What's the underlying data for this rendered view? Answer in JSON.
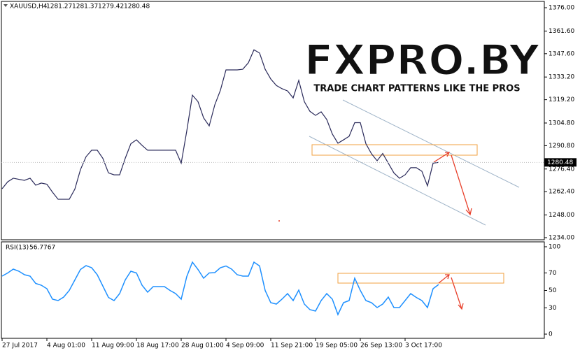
{
  "chart_data": [
    {
      "type": "line",
      "title": "XAUUSD,H4",
      "ohlc": [
        1281.27,
        1281.37,
        1279.42,
        1280.48
      ],
      "color": "#2a2a5a",
      "values": [
        1264.2,
        1268.5,
        1270.7,
        1270.0,
        1269.4,
        1270.7,
        1266.4,
        1267.7,
        1267.0,
        1262.1,
        1257.7,
        1257.7,
        1257.7,
        1264.0,
        1276.0,
        1284.0,
        1288.0,
        1288.0,
        1283.0,
        1274.0,
        1272.8,
        1272.8,
        1283.0,
        1292.0,
        1294.4,
        1291.0,
        1288.0,
        1288.0,
        1288.0,
        1288.0,
        1288.0,
        1288.0,
        1280.0,
        1300.0,
        1322.0,
        1318.0,
        1308.0,
        1303.0,
        1316.0,
        1325.0,
        1337.6,
        1337.6,
        1337.6,
        1338.0,
        1342.0,
        1350.0,
        1348.0,
        1338.0,
        1332.0,
        1328.0,
        1326.0,
        1324.6,
        1320.3,
        1331.1,
        1318.0,
        1312.0,
        1309.5,
        1311.7,
        1307.0,
        1298.0,
        1292.3,
        1294.4,
        1296.6,
        1305.0,
        1305.0,
        1292.0,
        1285.8,
        1281.5,
        1286.0,
        1280.0,
        1274.0,
        1270.7,
        1272.8,
        1277.2,
        1277.2,
        1275.0,
        1266.0,
        1280.0,
        1280.48
      ],
      "ylim": [
        1232.7,
        1379.9
      ],
      "yticks": [
        {
          "value": 1376,
          "label": "1376.00"
        },
        {
          "value": 1361.6,
          "label": "1361.60"
        },
        {
          "value": 1347.6,
          "label": "1347.60"
        },
        {
          "value": 1333.2,
          "label": "1333.20"
        },
        {
          "value": 1319.2,
          "label": "1319.20"
        },
        {
          "value": 1304.8,
          "label": "1304.80"
        },
        {
          "value": 1290.8,
          "label": "1290.80"
        },
        {
          "value": 1276.4,
          "label": "1276.40"
        },
        {
          "value": 1262.4,
          "label": "1262.40"
        },
        {
          "value": 1248,
          "label": "1248.00"
        },
        {
          "value": 1234,
          "label": "1234.00"
        }
      ],
      "watermark": "FXPRO.BY",
      "watermark_subtitle": "TRADE CHART PATTERNS LIKE THE PROS"
    },
    {
      "type": "line",
      "title": "RSI(13)",
      "color": "#1e90ff",
      "categories": [
        "27 Jul 2017",
        null,
        null,
        null,
        null,
        null,
        null,
        null,
        "4 Aug 01:00",
        null,
        null,
        null,
        null,
        null,
        null,
        null,
        "11 Aug 09:00",
        null,
        null,
        null,
        null,
        null,
        null,
        null,
        "18 Aug 17:00",
        null,
        null,
        null,
        null,
        null,
        null,
        null,
        "28 Aug 01:00",
        null,
        null,
        null,
        null,
        null,
        null,
        null,
        "4 Sep 09:00",
        null,
        null,
        null,
        null,
        null,
        null,
        null,
        "11 Sep 21:00",
        null,
        null,
        null,
        null,
        null,
        null,
        null,
        "19 Sep 05:00",
        null,
        null,
        null,
        null,
        null,
        null,
        null,
        "26 Sep 13:00",
        null,
        null,
        null,
        null,
        null,
        null,
        null,
        "3 Oct 17:00",
        null,
        null,
        null,
        null,
        null,
        null
      ],
      "values": [
        66.4,
        70,
        74.4,
        72,
        68,
        66.4,
        58,
        56,
        52,
        40,
        38.4,
        42.4,
        50,
        62,
        74,
        78.4,
        76,
        68,
        55,
        42,
        38.4,
        46.4,
        62,
        72,
        70,
        56,
        48,
        54.4,
        54.4,
        54.4,
        50,
        46.4,
        40,
        66,
        82.4,
        74,
        64,
        70,
        70.4,
        76,
        78,
        74.4,
        68,
        66.4,
        66.4,
        82.4,
        78,
        50,
        36,
        34.4,
        40,
        46.4,
        38.4,
        50.4,
        34.4,
        28,
        26.4,
        38.4,
        46.4,
        40,
        22.4,
        36,
        38.4,
        64,
        50,
        38.4,
        36,
        30.4,
        34.4,
        42.4,
        30.4,
        30.4,
        38.4,
        46.4,
        42,
        38.4,
        30.4,
        52,
        56.7767
      ],
      "ylim": [
        -4.8,
        105.6
      ],
      "yticks": [
        100,
        70,
        50,
        30,
        0
      ]
    }
  ]
}
